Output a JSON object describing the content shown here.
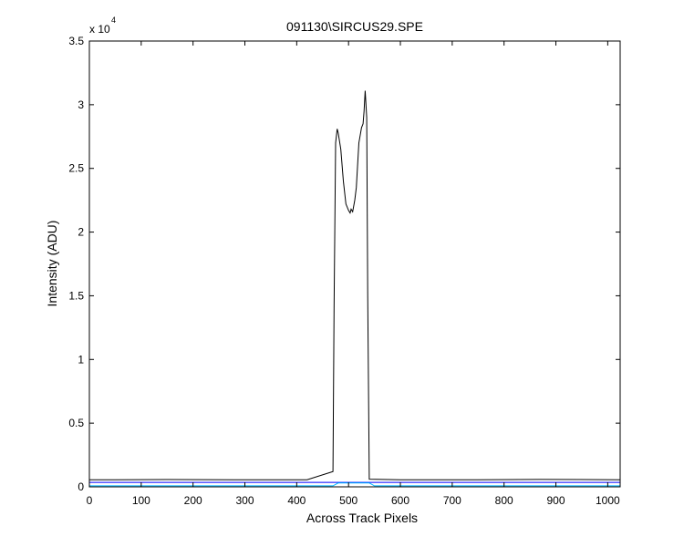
{
  "chart_data": {
    "type": "line",
    "title": "091130\\SIRCUS29.SPE",
    "xlabel": "Across Track Pixels",
    "ylabel": "Intensity (ADU)",
    "y_exponent_label": "x 10",
    "y_exponent_power": "4",
    "xlim": [
      0,
      1024
    ],
    "ylim": [
      0,
      35000
    ],
    "x_ticks": [
      0,
      100,
      200,
      300,
      400,
      500,
      600,
      700,
      800,
      900,
      1000
    ],
    "x_tick_labels": [
      "0",
      "100",
      "200",
      "300",
      "400",
      "500",
      "600",
      "700",
      "800",
      "900",
      "1000"
    ],
    "y_ticks": [
      0,
      5000,
      10000,
      15000,
      20000,
      25000,
      30000,
      35000
    ],
    "y_tick_labels": [
      "0",
      "0.5",
      "1",
      "1.5",
      "2",
      "2.5",
      "3",
      "3.5"
    ],
    "grid": false,
    "series": [
      {
        "color": "#000000",
        "x": [
          0,
          150,
          300,
          420,
          470,
          472,
          475,
          478,
          480,
          485,
          490,
          495,
          500,
          503,
          505,
          508,
          512,
          515,
          520,
          525,
          528,
          530,
          532,
          533,
          535,
          537,
          540,
          600,
          750,
          870,
          1024
        ],
        "y": [
          550,
          570,
          550,
          560,
          1200,
          14000,
          27000,
          28100,
          27800,
          26500,
          24000,
          22200,
          21700,
          21500,
          21800,
          21600,
          22500,
          23500,
          27000,
          28200,
          28500,
          29500,
          31100,
          30500,
          29000,
          15000,
          600,
          560,
          550,
          580,
          560
        ]
      },
      {
        "color": "#0000ff",
        "x": [
          0,
          1024
        ],
        "y": [
          350,
          350
        ]
      },
      {
        "color": "#00b7ff",
        "x": [
          0,
          470,
          480,
          540,
          550,
          1024
        ],
        "y": [
          80,
          80,
          300,
          300,
          80,
          80
        ]
      }
    ]
  }
}
